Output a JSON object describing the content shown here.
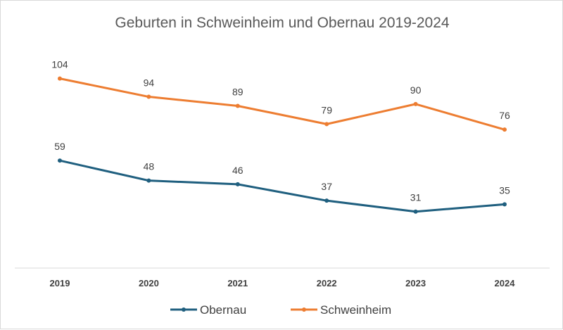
{
  "chart_data": {
    "type": "line",
    "title": "Geburten in Schweinheim und Obernau 2019-2024",
    "categories": [
      "2019",
      "2020",
      "2021",
      "2022",
      "2023",
      "2024"
    ],
    "series": [
      {
        "name": "Obernau",
        "color": "#1f5f7f",
        "values": [
          59,
          48,
          46,
          37,
          31,
          35
        ]
      },
      {
        "name": "Schweinheim",
        "color": "#ed7d31",
        "values": [
          104,
          94,
          89,
          79,
          90,
          76
        ]
      }
    ],
    "ylim": [
      0,
      120
    ],
    "grid": false,
    "legend": "bottom",
    "data_labels": true
  }
}
